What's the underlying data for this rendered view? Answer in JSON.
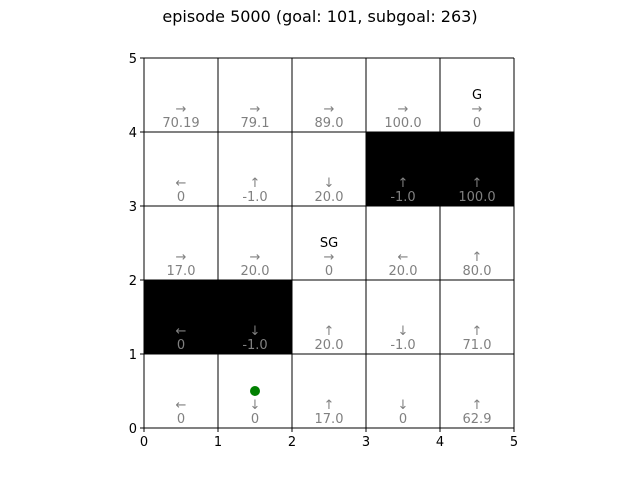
{
  "title": "episode 5000 (goal: 101, subgoal: 263)",
  "grid": {
    "cols": 5,
    "rows": 5,
    "x_ticks": [
      "0",
      "1",
      "2",
      "3",
      "4",
      "5"
    ],
    "y_ticks": [
      "0",
      "1",
      "2",
      "3",
      "4",
      "5"
    ],
    "cells": [
      {
        "row": 4,
        "col": 0,
        "arrow": "→",
        "value": "70.19",
        "wall": false,
        "label": ""
      },
      {
        "row": 4,
        "col": 1,
        "arrow": "→",
        "value": "79.1",
        "wall": false,
        "label": ""
      },
      {
        "row": 4,
        "col": 2,
        "arrow": "→",
        "value": "89.0",
        "wall": false,
        "label": ""
      },
      {
        "row": 4,
        "col": 3,
        "arrow": "→",
        "value": "100.0",
        "wall": false,
        "label": ""
      },
      {
        "row": 4,
        "col": 4,
        "arrow": "→",
        "value": "0",
        "wall": false,
        "label": "G"
      },
      {
        "row": 3,
        "col": 0,
        "arrow": "←",
        "value": "0",
        "wall": false,
        "label": ""
      },
      {
        "row": 3,
        "col": 1,
        "arrow": "↑",
        "value": "-1.0",
        "wall": false,
        "label": ""
      },
      {
        "row": 3,
        "col": 2,
        "arrow": "↓",
        "value": "20.0",
        "wall": false,
        "label": ""
      },
      {
        "row": 3,
        "col": 3,
        "arrow": "↑",
        "value": "-1.0",
        "wall": true,
        "label": ""
      },
      {
        "row": 3,
        "col": 4,
        "arrow": "↑",
        "value": "100.0",
        "wall": true,
        "label": ""
      },
      {
        "row": 2,
        "col": 0,
        "arrow": "→",
        "value": "17.0",
        "wall": false,
        "label": ""
      },
      {
        "row": 2,
        "col": 1,
        "arrow": "→",
        "value": "20.0",
        "wall": false,
        "label": ""
      },
      {
        "row": 2,
        "col": 2,
        "arrow": "→",
        "value": "0",
        "wall": false,
        "label": "SG"
      },
      {
        "row": 2,
        "col": 3,
        "arrow": "←",
        "value": "20.0",
        "wall": false,
        "label": ""
      },
      {
        "row": 2,
        "col": 4,
        "arrow": "↑",
        "value": "80.0",
        "wall": false,
        "label": ""
      },
      {
        "row": 1,
        "col": 0,
        "arrow": "←",
        "value": "0",
        "wall": true,
        "label": ""
      },
      {
        "row": 1,
        "col": 1,
        "arrow": "↓",
        "value": "-1.0",
        "wall": true,
        "label": ""
      },
      {
        "row": 1,
        "col": 2,
        "arrow": "↑",
        "value": "20.0",
        "wall": false,
        "label": ""
      },
      {
        "row": 1,
        "col": 3,
        "arrow": "↓",
        "value": "-1.0",
        "wall": false,
        "label": ""
      },
      {
        "row": 1,
        "col": 4,
        "arrow": "↑",
        "value": "71.0",
        "wall": false,
        "label": ""
      },
      {
        "row": 0,
        "col": 0,
        "arrow": "←",
        "value": "0",
        "wall": false,
        "label": ""
      },
      {
        "row": 0,
        "col": 1,
        "arrow": "↓",
        "value": "0",
        "wall": false,
        "label": ""
      },
      {
        "row": 0,
        "col": 2,
        "arrow": "↑",
        "value": "17.0",
        "wall": false,
        "label": ""
      },
      {
        "row": 0,
        "col": 3,
        "arrow": "↓",
        "value": "0",
        "wall": false,
        "label": ""
      },
      {
        "row": 0,
        "col": 4,
        "arrow": "↑",
        "value": "62.9",
        "wall": false,
        "label": ""
      }
    ],
    "agent": {
      "row": 0,
      "col": 1,
      "color": "#008000"
    }
  },
  "colors": {
    "wall": "#000000",
    "annotation": "#808080",
    "label": "#000000",
    "gridline": "#000000"
  }
}
